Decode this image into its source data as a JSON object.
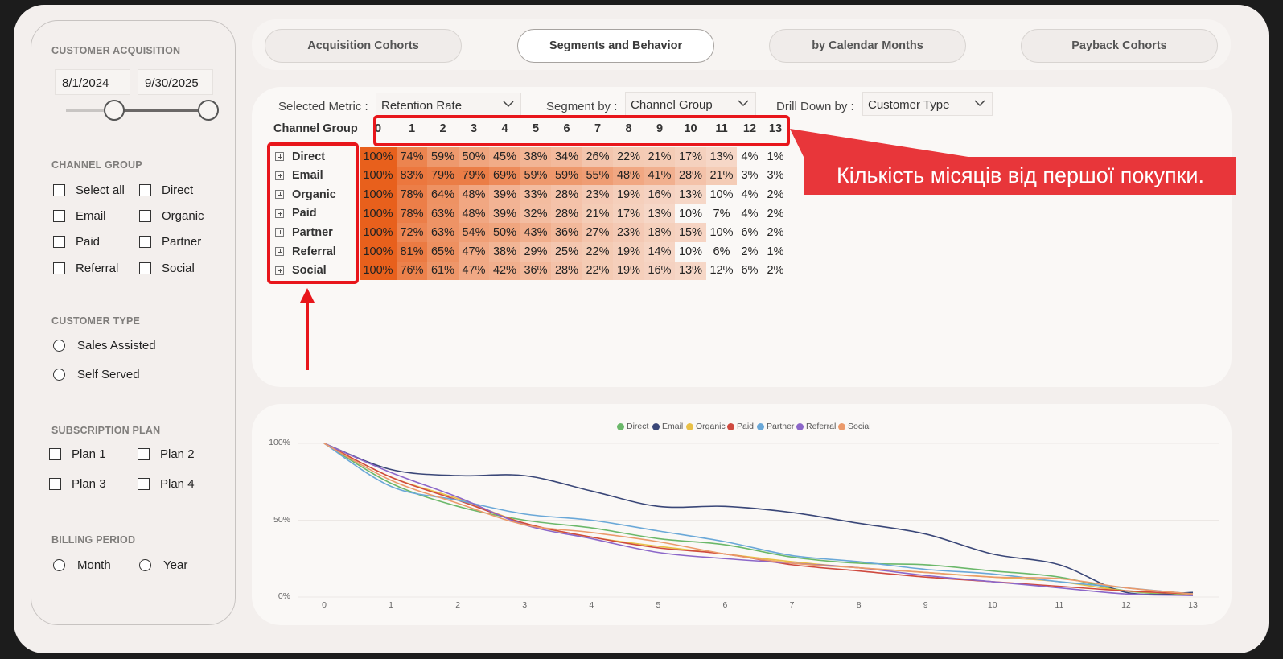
{
  "sidebar": {
    "customer_acquisition": {
      "title": "CUSTOMER ACQUISITION",
      "start_date": "8/1/2024",
      "end_date": "9/30/2025"
    },
    "channel_group": {
      "title": "CHANNEL GROUP",
      "options": [
        "Select all",
        "Direct",
        "Email",
        "Organic",
        "Paid",
        "Partner",
        "Referral",
        "Social"
      ]
    },
    "customer_type": {
      "title": "CUSTOMER TYPE",
      "options": [
        "Sales Assisted",
        "Self Served"
      ]
    },
    "subscription_plan": {
      "title": "SUBSCRIPTION PLAN",
      "options": [
        "Plan 1",
        "Plan 2",
        "Plan 3",
        "Plan 4"
      ]
    },
    "billing_period": {
      "title": "BILLING PERIOD",
      "options": [
        "Month",
        "Year"
      ]
    }
  },
  "tabs": [
    {
      "label": "Acquisition Cohorts",
      "active": false
    },
    {
      "label": "Segments and Behavior",
      "active": true
    },
    {
      "label": "by Calendar Months",
      "active": false
    },
    {
      "label": "Payback Cohorts",
      "active": false
    }
  ],
  "filters": {
    "metric_label": "Selected Metric :",
    "metric_value": "Retention Rate",
    "segment_label": "Segment by :",
    "segment_value": "Channel Group",
    "drill_label": "Drill Down by :",
    "drill_value": "Customer Type"
  },
  "matrix": {
    "row_header": "Channel Group",
    "columns": [
      "0",
      "1",
      "2",
      "3",
      "4",
      "5",
      "6",
      "7",
      "8",
      "9",
      "10",
      "11",
      "12",
      "13"
    ],
    "rows": [
      {
        "label": "Direct",
        "cells": [
          "100%",
          "74%",
          "59%",
          "50%",
          "45%",
          "38%",
          "34%",
          "26%",
          "22%",
          "21%",
          "17%",
          "13%",
          "4%",
          "1%"
        ]
      },
      {
        "label": "Email",
        "cells": [
          "100%",
          "83%",
          "79%",
          "79%",
          "69%",
          "59%",
          "59%",
          "55%",
          "48%",
          "41%",
          "28%",
          "21%",
          "3%",
          "3%"
        ]
      },
      {
        "label": "Organic",
        "cells": [
          "100%",
          "78%",
          "64%",
          "48%",
          "39%",
          "33%",
          "28%",
          "23%",
          "19%",
          "16%",
          "13%",
          "10%",
          "4%",
          "2%"
        ]
      },
      {
        "label": "Paid",
        "cells": [
          "100%",
          "78%",
          "63%",
          "48%",
          "39%",
          "32%",
          "28%",
          "21%",
          "17%",
          "13%",
          "10%",
          "7%",
          "4%",
          "2%"
        ]
      },
      {
        "label": "Partner",
        "cells": [
          "100%",
          "72%",
          "63%",
          "54%",
          "50%",
          "43%",
          "36%",
          "27%",
          "23%",
          "18%",
          "15%",
          "10%",
          "6%",
          "2%"
        ]
      },
      {
        "label": "Referral",
        "cells": [
          "100%",
          "81%",
          "65%",
          "47%",
          "38%",
          "29%",
          "25%",
          "22%",
          "19%",
          "14%",
          "10%",
          "6%",
          "2%",
          "1%"
        ]
      },
      {
        "label": "Social",
        "cells": [
          "100%",
          "76%",
          "61%",
          "47%",
          "42%",
          "36%",
          "28%",
          "22%",
          "19%",
          "16%",
          "13%",
          "12%",
          "6%",
          "2%"
        ]
      }
    ],
    "heat_color": "#e8601c"
  },
  "annotation": {
    "callout_text": "Кількість місяців від першої покупки.",
    "color": "#e8161b"
  },
  "chart_data": {
    "type": "line",
    "x": [
      0,
      1,
      2,
      3,
      4,
      5,
      6,
      7,
      8,
      9,
      10,
      11,
      12,
      13
    ],
    "y_ticks": [
      "100%",
      "50%",
      "0%"
    ],
    "ylim": [
      0,
      100
    ],
    "legend_placement": "top-center",
    "series": [
      {
        "name": "Direct",
        "color": "#6bb86a",
        "values": [
          100,
          74,
          59,
          50,
          45,
          38,
          34,
          26,
          22,
          21,
          17,
          13,
          4,
          1
        ]
      },
      {
        "name": "Email",
        "color": "#3a4778",
        "values": [
          100,
          83,
          79,
          79,
          69,
          59,
          59,
          55,
          48,
          41,
          28,
          21,
          3,
          3
        ]
      },
      {
        "name": "Organic",
        "color": "#e9c046",
        "values": [
          100,
          78,
          64,
          48,
          39,
          33,
          28,
          23,
          19,
          16,
          13,
          10,
          4,
          2
        ]
      },
      {
        "name": "Paid",
        "color": "#cf4a3f",
        "values": [
          100,
          78,
          63,
          48,
          39,
          32,
          28,
          21,
          17,
          13,
          10,
          7,
          4,
          2
        ]
      },
      {
        "name": "Partner",
        "color": "#6aa8d8",
        "values": [
          100,
          72,
          63,
          54,
          50,
          43,
          36,
          27,
          23,
          18,
          15,
          10,
          6,
          2
        ]
      },
      {
        "name": "Referral",
        "color": "#8c67c9",
        "values": [
          100,
          81,
          65,
          47,
          38,
          29,
          25,
          22,
          19,
          14,
          10,
          6,
          2,
          1
        ]
      },
      {
        "name": "Social",
        "color": "#eb9a6b",
        "values": [
          100,
          76,
          61,
          47,
          42,
          36,
          28,
          22,
          19,
          16,
          13,
          12,
          6,
          2
        ]
      }
    ]
  }
}
